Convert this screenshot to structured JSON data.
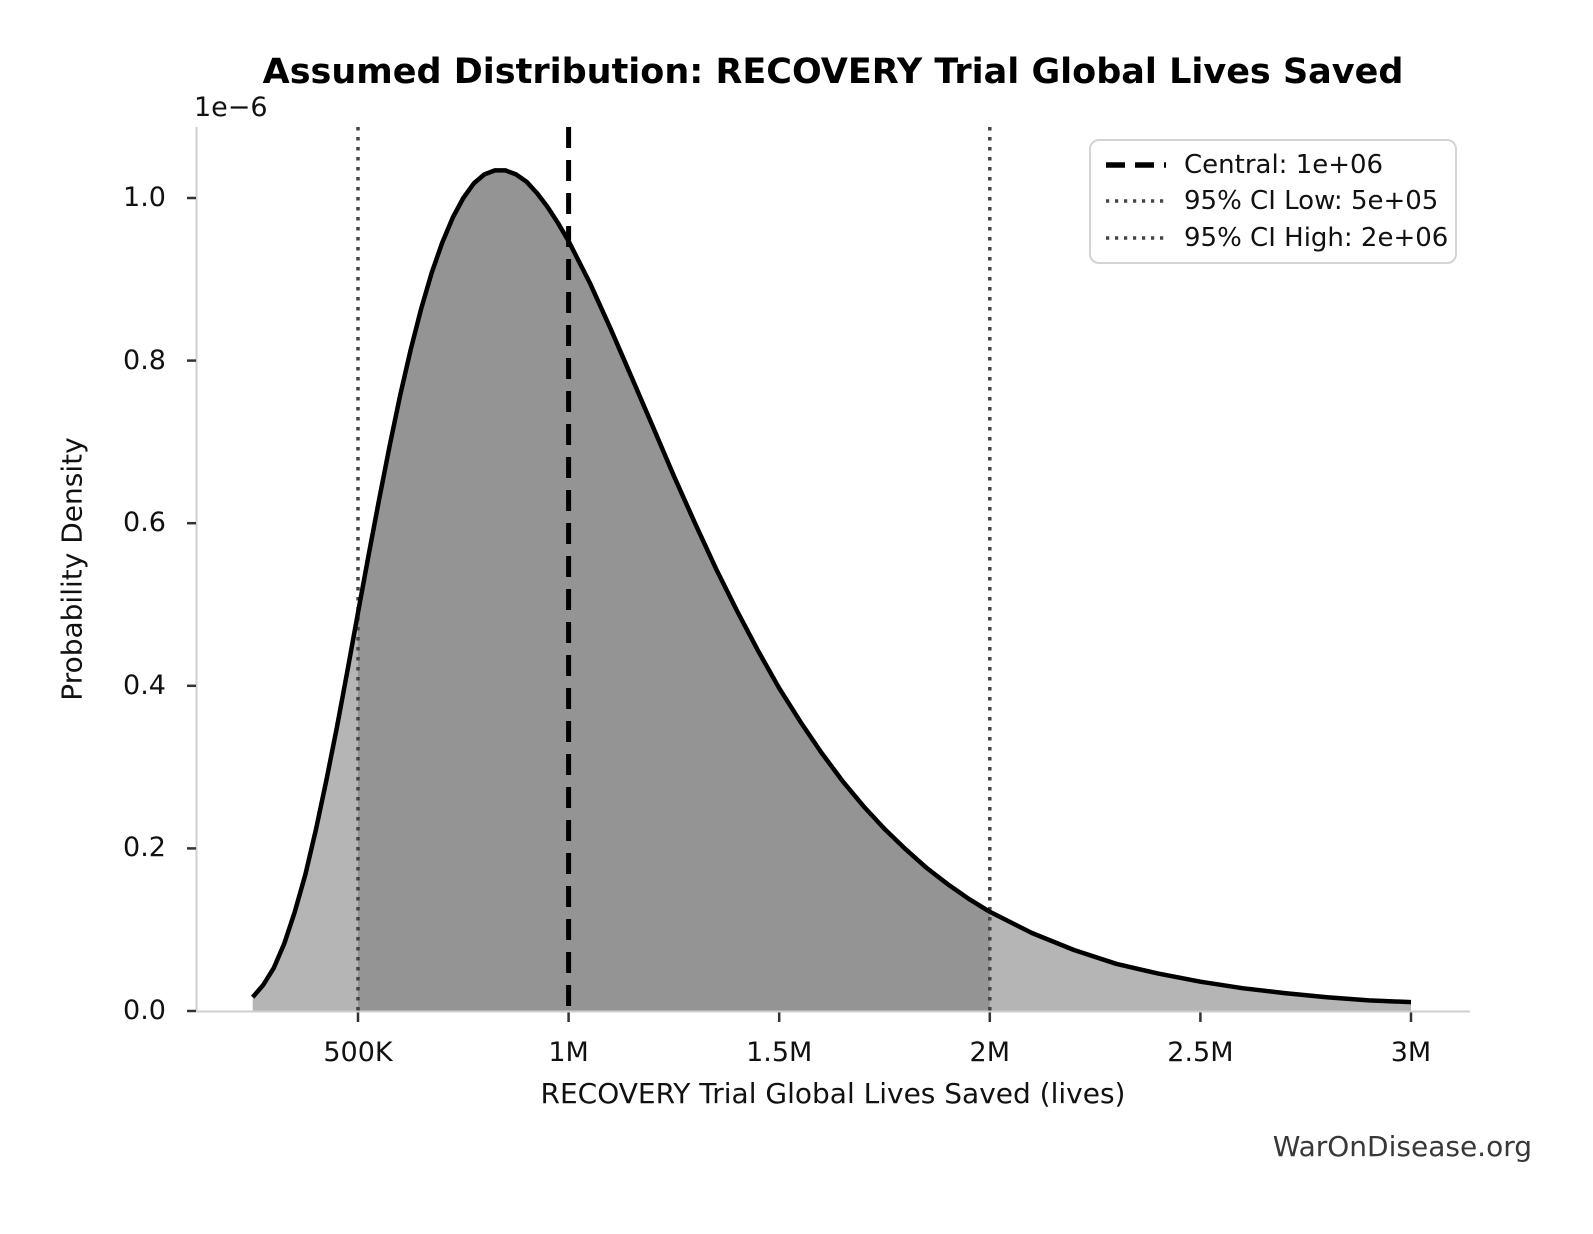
{
  "watermark": "WarOnDisease.org",
  "chart_data": {
    "type": "area",
    "title": "Assumed Distribution: RECOVERY Trial Global Lives Saved",
    "xlabel": "RECOVERY Trial Global Lives Saved (lives)",
    "ylabel": "Probability Density",
    "y_scale_label": "1e−6",
    "grid": false,
    "legend_position": "upper right",
    "xlim": [
      117000,
      3140000
    ],
    "ylim": [
      0,
      1.087
    ],
    "x_ticks": [
      {
        "label": "500K",
        "value": 500000
      },
      {
        "label": "1M",
        "value": 1000000
      },
      {
        "label": "1.5M",
        "value": 1500000
      },
      {
        "label": "2M",
        "value": 2000000
      },
      {
        "label": "2.5M",
        "value": 2500000
      },
      {
        "label": "3M",
        "value": 3000000
      }
    ],
    "y_ticks": [
      {
        "label": "0.0",
        "value": 0.0
      },
      {
        "label": "0.2",
        "value": 0.2
      },
      {
        "label": "0.4",
        "value": 0.4
      },
      {
        "label": "0.6",
        "value": 0.6
      },
      {
        "label": "0.8",
        "value": 0.8
      },
      {
        "label": "1.0",
        "value": 1.0
      }
    ],
    "markers": [
      {
        "name": "central",
        "label": "Central: 1e+06",
        "value": 1000000,
        "style": "dashed",
        "color": "#000000"
      },
      {
        "name": "ci-low",
        "label": "95% CI Low: 5e+05",
        "value": 500000,
        "style": "dotted",
        "color": "#444444"
      },
      {
        "name": "ci-high",
        "label": "95% CI High: 2e+06",
        "value": 2000000,
        "style": "dotted",
        "color": "#444444"
      }
    ],
    "series": [
      {
        "name": "probability-density",
        "x": [
          250000,
          275000,
          300000,
          325000,
          350000,
          375000,
          400000,
          425000,
          450000,
          475000,
          500000,
          525000,
          550000,
          575000,
          600000,
          625000,
          650000,
          675000,
          700000,
          725000,
          750000,
          775000,
          800000,
          825000,
          850000,
          875000,
          900000,
          925000,
          950000,
          975000,
          1000000,
          1050000,
          1100000,
          1150000,
          1200000,
          1250000,
          1300000,
          1350000,
          1400000,
          1450000,
          1500000,
          1550000,
          1600000,
          1650000,
          1700000,
          1750000,
          1800000,
          1850000,
          1900000,
          1950000,
          2000000,
          2100000,
          2200000,
          2300000,
          2400000,
          2500000,
          2600000,
          2700000,
          2800000,
          2900000,
          3000000
        ],
        "y_1e6": [
          0.017,
          0.032,
          0.053,
          0.083,
          0.122,
          0.168,
          0.223,
          0.284,
          0.349,
          0.419,
          0.49,
          0.56,
          0.629,
          0.695,
          0.757,
          0.813,
          0.864,
          0.908,
          0.945,
          0.976,
          1.0,
          1.018,
          1.029,
          1.034,
          1.034,
          1.029,
          1.02,
          1.006,
          0.989,
          0.969,
          0.947,
          0.896,
          0.839,
          0.779,
          0.719,
          0.658,
          0.6,
          0.544,
          0.492,
          0.443,
          0.397,
          0.356,
          0.318,
          0.283,
          0.252,
          0.224,
          0.199,
          0.176,
          0.156,
          0.138,
          0.122,
          0.096,
          0.075,
          0.058,
          0.046,
          0.036,
          0.028,
          0.022,
          0.017,
          0.013,
          0.011
        ]
      }
    ],
    "colors": {
      "curve": "#000000",
      "fill_outside_ci": "#b5b5b5",
      "fill_inside_ci": "#949494",
      "spine": "#cfcfcf",
      "tick": "#333333"
    }
  }
}
